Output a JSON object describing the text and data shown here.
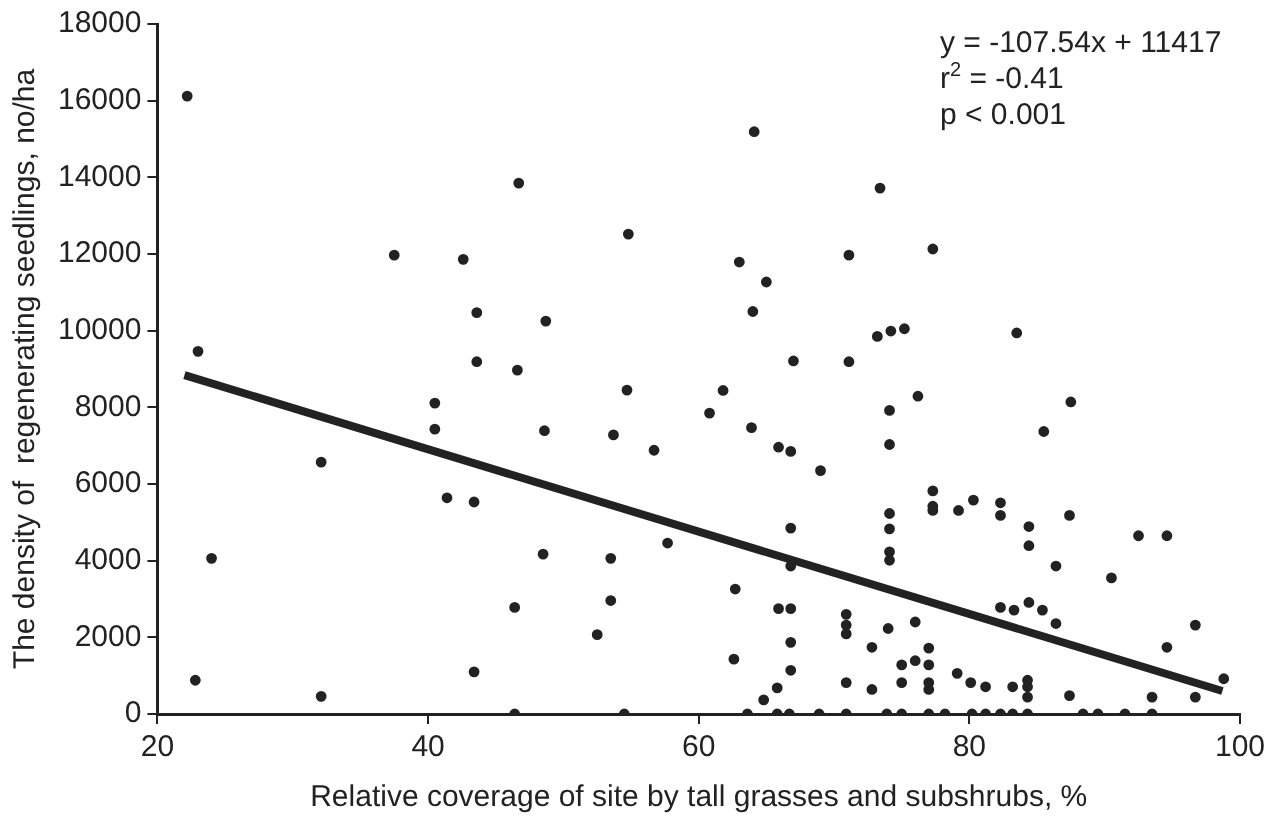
{
  "chart_data": {
    "type": "scatter",
    "xlabel": "Relative coverage of site by tall grasses and subshrubs, %",
    "ylabel": "The density of  regenerating seedlings, no/ha",
    "xlim": [
      20,
      100
    ],
    "xticks": [
      20,
      40,
      60,
      80,
      100
    ],
    "ylim": [
      0,
      18000
    ],
    "yticks": [
      0,
      2000,
      4000,
      6000,
      8000,
      10000,
      12000,
      14000,
      16000,
      18000
    ],
    "grid": false,
    "legend": false,
    "marker": "circle",
    "annotations": [
      "y = -107.54x + 11417",
      "r$^{2}$ = -0.41",
      "p < 0.001"
    ],
    "series": [
      {
        "color": "#222222",
        "x": [
          22.2,
          23.0,
          24.0,
          22.8,
          32.1,
          32.1,
          37.5,
          42.6,
          43.6,
          43.6,
          40.5,
          40.5,
          41.4,
          43.4,
          43.4,
          46.7,
          48.7,
          46.6,
          48.6,
          48.5,
          46.4,
          46.4,
          54.8,
          54.7,
          53.7,
          56.7,
          57.7,
          53.5,
          53.5,
          52.5,
          54.5,
          64.1,
          73.4,
          63.0,
          65.0,
          64.0,
          71.1,
          77.3,
          73.2,
          74.2,
          75.2,
          83.5,
          67.0,
          71.1,
          61.8,
          60.8,
          63.9,
          74.1,
          74.1,
          76.2,
          87.5,
          85.5,
          65.9,
          66.8,
          69.0,
          77.3,
          77.3,
          77.3,
          79.2,
          80.3,
          82.3,
          82.3,
          84.4,
          84.4,
          87.4,
          74.1,
          74.1,
          74.1,
          74.1,
          66.8,
          92.5,
          94.6,
          86.4,
          90.5,
          62.7,
          66.8,
          65.9,
          66.8,
          70.9,
          70.9,
          70.9,
          74.0,
          76.0,
          82.3,
          83.3,
          84.4,
          85.4,
          86.4,
          96.7,
          94.6,
          62.6,
          66.8,
          66.8,
          65.8,
          64.8,
          72.8,
          70.9,
          72.8,
          75.0,
          76.0,
          77.0,
          75.0,
          77.0,
          77.0,
          77.0,
          79.1,
          80.1,
          81.2,
          83.2,
          84.3,
          84.3,
          84.3,
          87.4,
          93.5,
          96.7,
          98.8,
          63.6,
          65.8,
          66.7,
          68.9,
          70.9,
          73.9,
          75.0,
          77.0,
          78.2,
          80.2,
          81.2,
          82.3,
          83.2,
          84.3,
          88.4,
          89.5,
          91.5,
          93.5
        ],
        "values": [
          16120,
          9460,
          4060,
          880,
          6570,
          460,
          11970,
          11860,
          10470,
          9190,
          8110,
          7430,
          5640,
          5530,
          1100,
          13850,
          10250,
          8970,
          7390,
          4170,
          2780,
          0,
          12520,
          8450,
          7280,
          6880,
          4460,
          4060,
          2960,
          2070,
          0,
          15190,
          13720,
          11790,
          11270,
          10500,
          11970,
          12130,
          9850,
          9990,
          10050,
          9940,
          9210,
          9190,
          8440,
          7850,
          7470,
          7920,
          7030,
          8290,
          8140,
          7370,
          6960,
          6850,
          6350,
          5820,
          5420,
          5310,
          5310,
          5580,
          5510,
          5180,
          4890,
          4390,
          5180,
          5230,
          4830,
          4230,
          4010,
          4850,
          4650,
          4650,
          3860,
          3550,
          3260,
          3860,
          2750,
          2750,
          2600,
          2320,
          2090,
          2230,
          2400,
          2780,
          2710,
          2910,
          2710,
          2360,
          2320,
          1740,
          1430,
          1870,
          1140,
          680,
          370,
          1740,
          820,
          640,
          1280,
          1390,
          1280,
          820,
          1720,
          820,
          640,
          1060,
          820,
          710,
          710,
          880,
          710,
          440,
          480,
          440,
          440,
          920,
          0,
          0,
          0,
          0,
          0,
          0,
          0,
          0,
          0,
          0,
          0,
          0,
          0,
          0,
          0,
          0,
          0,
          0
        ]
      },
      {
        "type": "line",
        "color": "#222222",
        "marker": "none",
        "x": [
          22,
          98.7
        ],
        "values": [
          8840,
          600
        ]
      }
    ]
  }
}
